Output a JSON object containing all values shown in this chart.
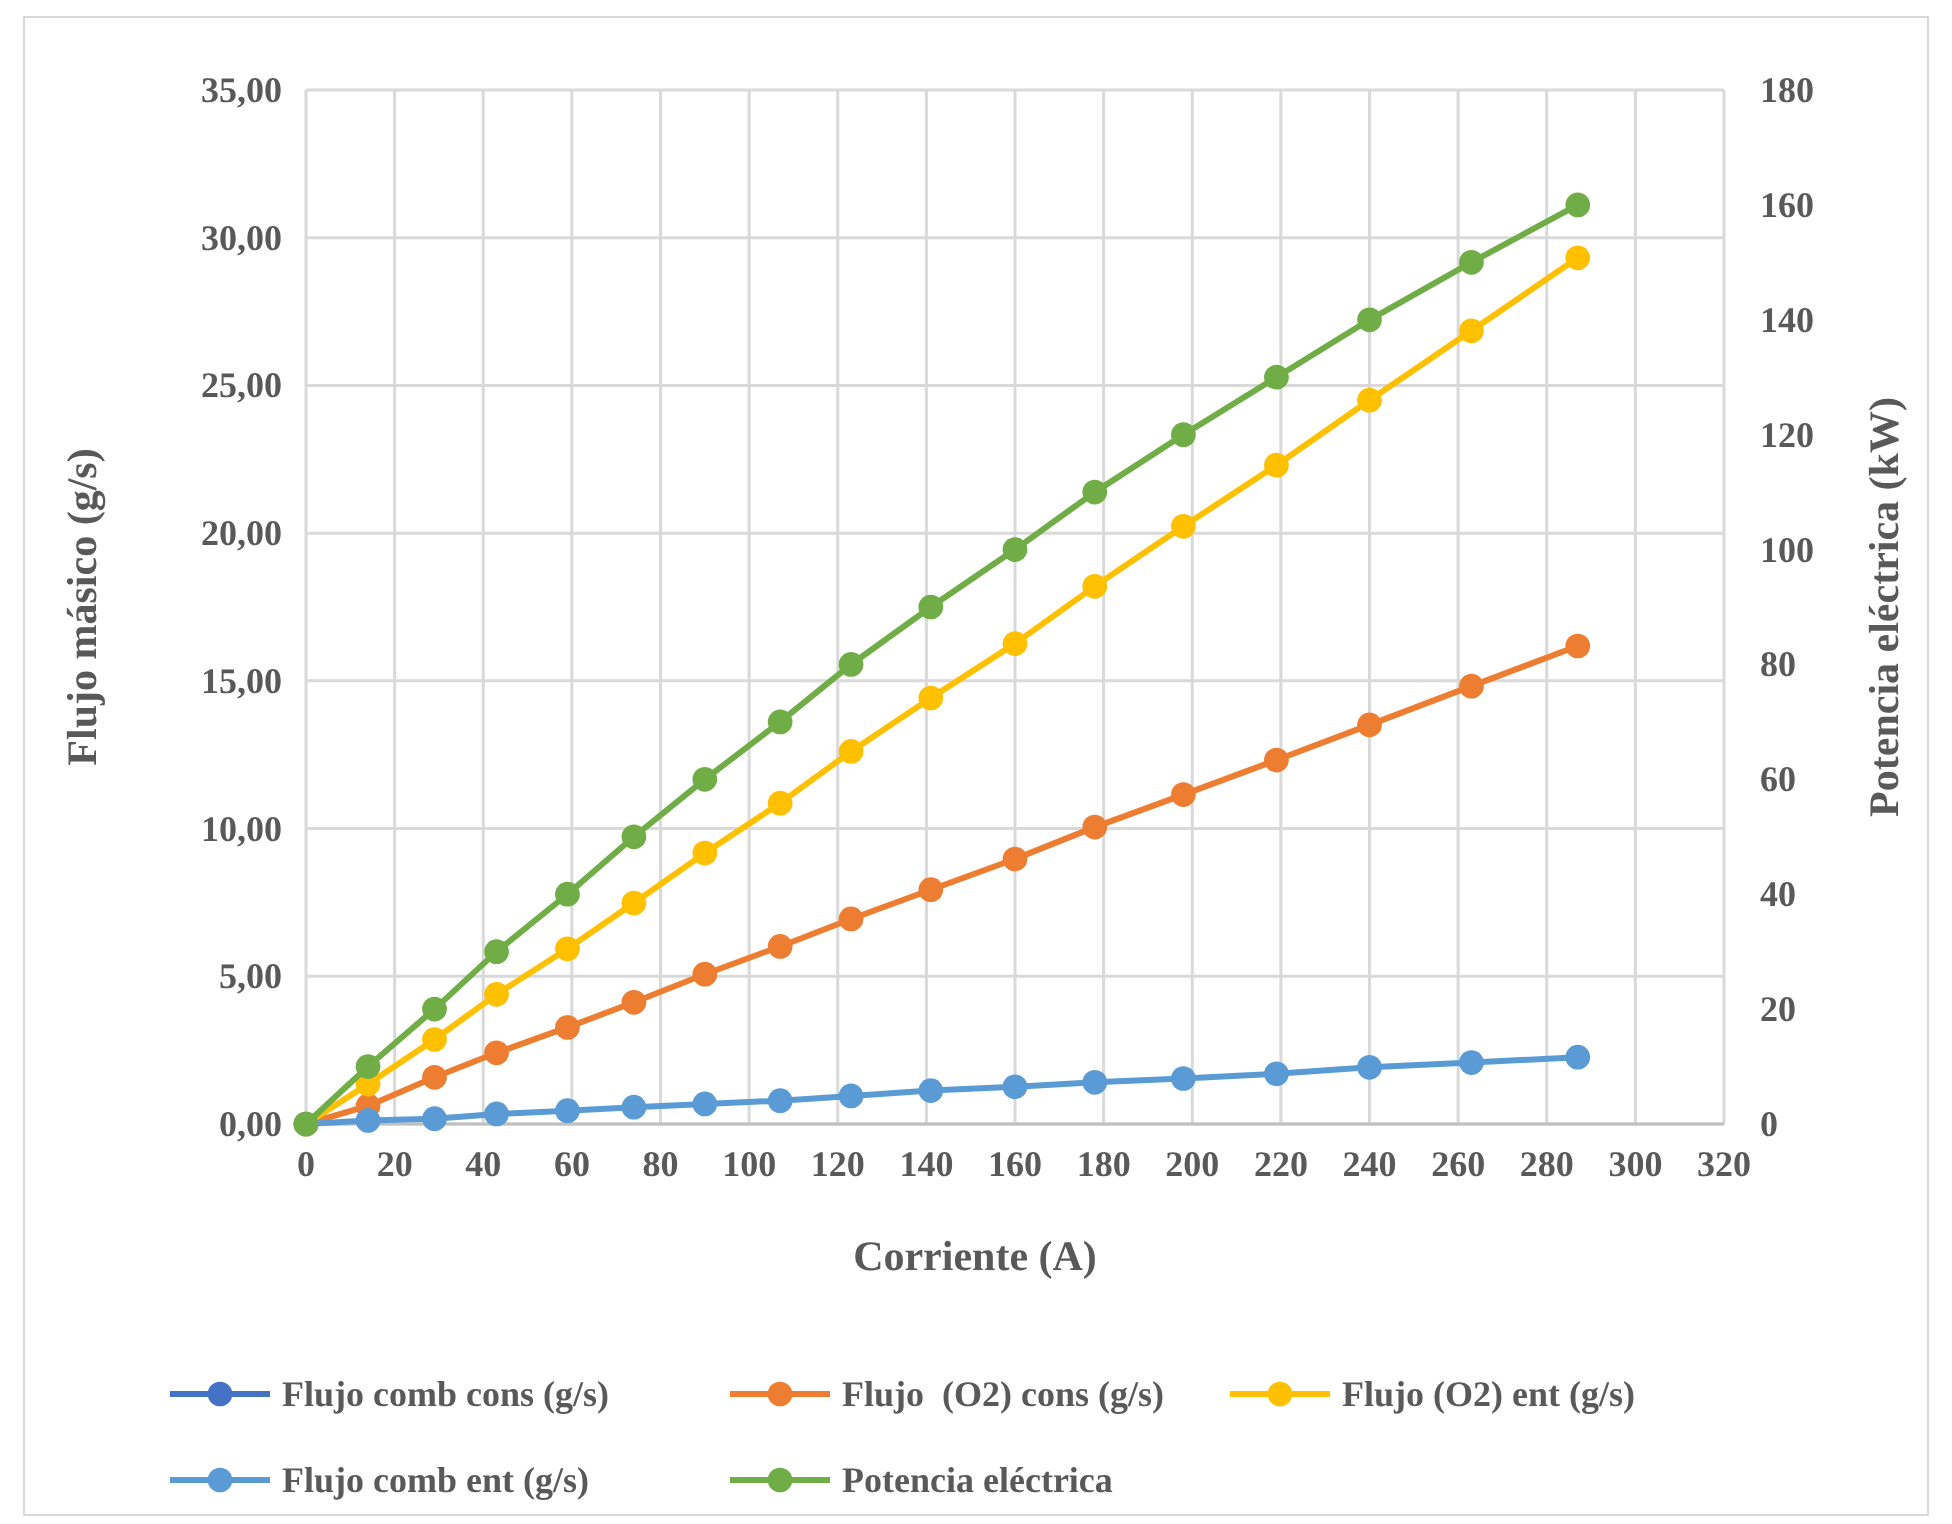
{
  "chart_data": {
    "type": "line",
    "xlabel": "Corriente (A)",
    "ylabel": "Flujo másico (g/s)",
    "y2label": "Potencia eléctrica (kW)",
    "x": [
      0,
      14,
      29,
      43,
      59,
      74,
      90,
      107,
      123,
      141,
      160,
      178,
      198,
      219,
      240,
      263,
      287
    ],
    "xlim": [
      0,
      320
    ],
    "xticks": [
      0,
      20,
      40,
      60,
      80,
      100,
      120,
      140,
      160,
      180,
      200,
      220,
      240,
      260,
      280,
      300,
      320
    ],
    "ylim": [
      0,
      35
    ],
    "yticks": [
      {
        "value": 0,
        "label": "0,00"
      },
      {
        "value": 5,
        "label": "5,00"
      },
      {
        "value": 10,
        "label": "10,00"
      },
      {
        "value": 15,
        "label": "15,00"
      },
      {
        "value": 20,
        "label": "20,00"
      },
      {
        "value": 25,
        "label": "25,00"
      },
      {
        "value": 30,
        "label": "30,00"
      },
      {
        "value": 35,
        "label": "35,00"
      }
    ],
    "y2lim": [
      0,
      180
    ],
    "y2ticks": [
      0,
      20,
      40,
      60,
      80,
      100,
      120,
      140,
      160,
      180
    ],
    "grid": true,
    "legend": "bottom",
    "marker": "circle",
    "line_style": "solid",
    "series": [
      {
        "name": "Flujo comb cons (g/s)",
        "color": "#4472c4",
        "values": [
          null,
          null,
          null,
          null,
          null,
          null,
          null,
          null,
          null,
          null,
          null,
          null,
          null,
          null,
          null,
          null,
          null
        ]
      },
      {
        "name": "Flujo  (O2) cons (g/s)",
        "color": "#ed7d31",
        "values": [
          0,
          0.61,
          1.58,
          2.41,
          3.27,
          4.12,
          5.07,
          6.01,
          6.94,
          7.93,
          8.97,
          10.05,
          11.15,
          12.32,
          13.51,
          14.82,
          16.18
        ]
      },
      {
        "name": "Flujo (O2) ent (g/s)",
        "color": "#ffc000",
        "values": [
          0,
          1.35,
          2.86,
          4.39,
          5.93,
          7.48,
          9.17,
          10.86,
          12.61,
          14.42,
          16.26,
          18.2,
          20.23,
          22.3,
          24.5,
          26.85,
          29.32
        ]
      },
      {
        "name": "Flujo comb ent (g/s)",
        "color": "#5b9bd5",
        "values": [
          0,
          0.12,
          0.18,
          0.34,
          0.45,
          0.57,
          0.68,
          0.79,
          0.95,
          1.13,
          1.26,
          1.41,
          1.54,
          1.7,
          1.92,
          2.08,
          2.26
        ]
      },
      {
        "name": "Potencia eléctrica",
        "color": "#70ad47",
        "axis": "y2",
        "values": [
          0,
          10,
          20,
          30,
          40,
          50,
          60,
          70,
          80,
          90,
          100,
          110,
          120,
          130,
          140,
          150,
          160
        ]
      }
    ]
  }
}
